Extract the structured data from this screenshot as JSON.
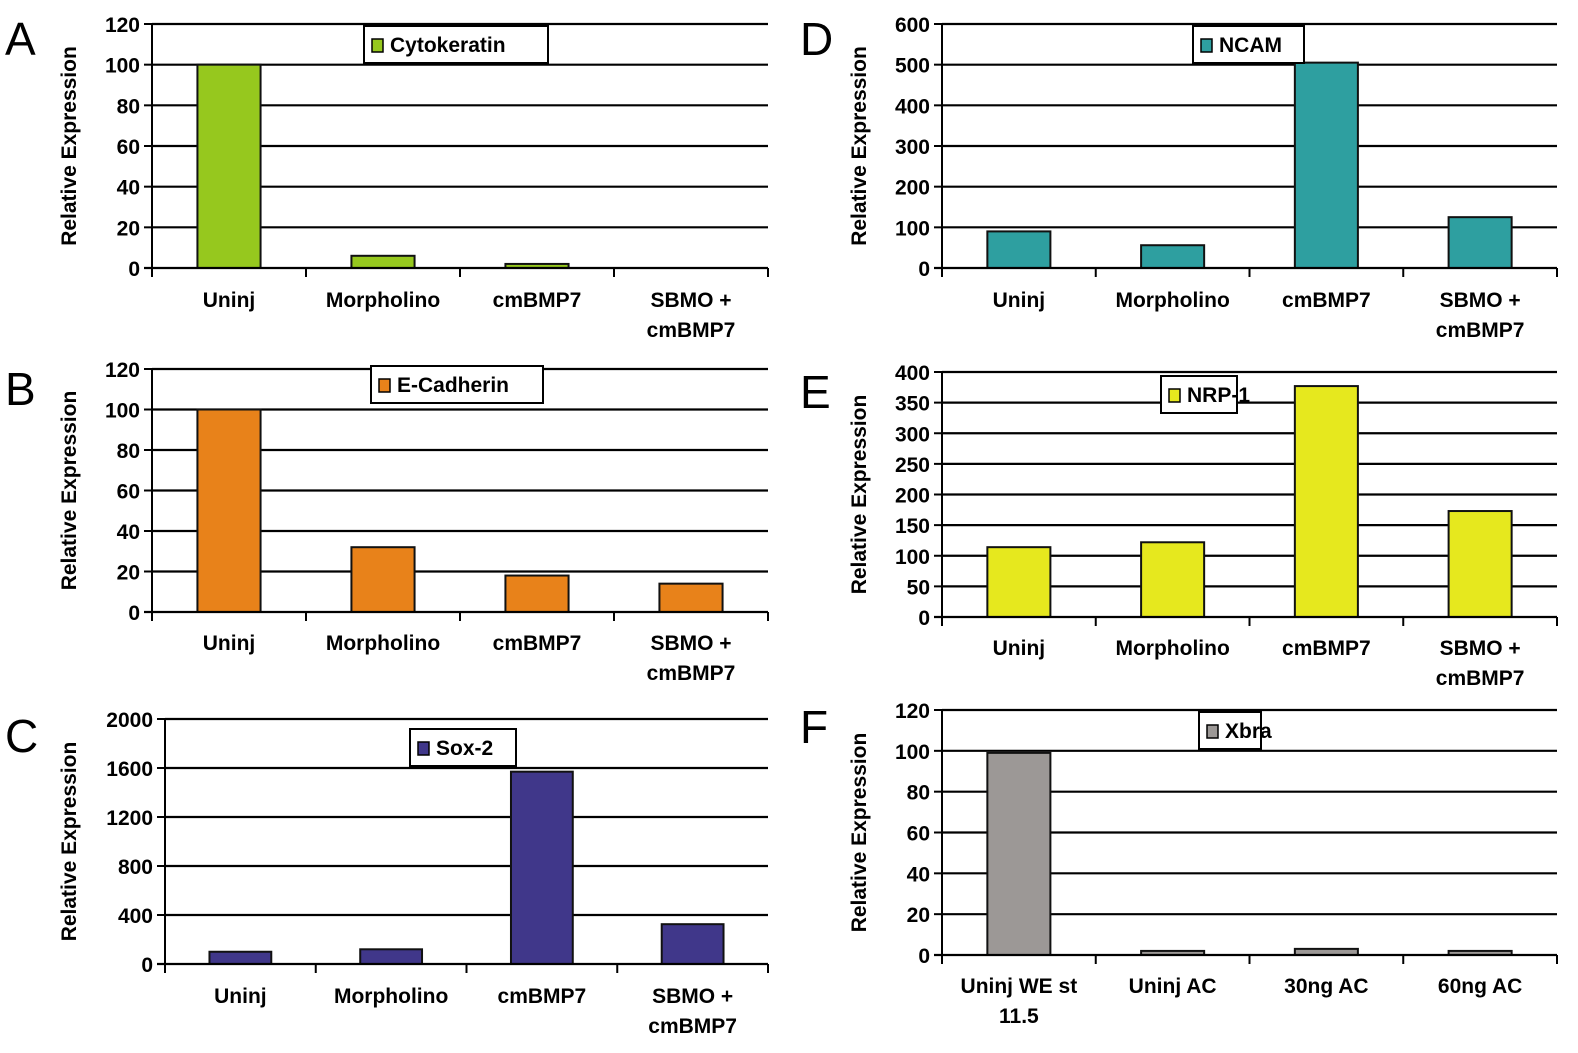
{
  "chart_data": [
    {
      "panel": "A",
      "type": "bar",
      "title": "",
      "legend": "Cytokeratin",
      "legend_position": "top-center",
      "color": "#96c81e",
      "xlabel": "",
      "ylabel": "Relative Expression",
      "ylim": [
        0,
        120
      ],
      "yticks": [
        0,
        20,
        40,
        60,
        80,
        100,
        120
      ],
      "grid": true,
      "categories": [
        [
          "Uninj"
        ],
        [
          "Morpholino"
        ],
        [
          "cmBMP7"
        ],
        [
          "SBMO +",
          "cmBMP7"
        ]
      ],
      "values": [
        100,
        6,
        2,
        0
      ]
    },
    {
      "panel": "B",
      "type": "bar",
      "title": "",
      "legend": "E-Cadherin",
      "legend_position": "top-center",
      "color": "#e8821a",
      "xlabel": "",
      "ylabel": "Relative Expression",
      "ylim": [
        0,
        120
      ],
      "yticks": [
        0,
        20,
        40,
        60,
        80,
        100,
        120
      ],
      "grid": true,
      "categories": [
        [
          "Uninj"
        ],
        [
          "Morpholino"
        ],
        [
          "cmBMP7"
        ],
        [
          "SBMO +",
          "cmBMP7"
        ]
      ],
      "values": [
        100,
        32,
        18,
        14
      ]
    },
    {
      "panel": "C",
      "type": "bar",
      "title": "",
      "legend": "Sox-2",
      "legend_position": "top-center",
      "color": "#40378a",
      "xlabel": "",
      "ylabel": "Relative Expression",
      "ylim": [
        0,
        2000
      ],
      "yticks": [
        0,
        400,
        800,
        1200,
        1600,
        2000
      ],
      "grid": true,
      "categories": [
        [
          "Uninj"
        ],
        [
          "Morpholino"
        ],
        [
          "cmBMP7"
        ],
        [
          "SBMO +",
          "cmBMP7"
        ]
      ],
      "values": [
        100,
        120,
        1570,
        325
      ]
    },
    {
      "panel": "D",
      "type": "bar",
      "title": "",
      "legend": "NCAM",
      "legend_position": "top-center",
      "color": "#2e9fa0",
      "xlabel": "",
      "ylabel": "Relative Expression",
      "ylim": [
        0,
        600
      ],
      "yticks": [
        0,
        100,
        200,
        300,
        400,
        500,
        600
      ],
      "grid": true,
      "categories": [
        [
          "Uninj"
        ],
        [
          "Morpholino"
        ],
        [
          "cmBMP7"
        ],
        [
          "SBMO +",
          "cmBMP7"
        ]
      ],
      "values": [
        90,
        56,
        505,
        125
      ]
    },
    {
      "panel": "E",
      "type": "bar",
      "title": "",
      "legend": "NRP-1",
      "legend_position": "top-center",
      "color": "#e6e81e",
      "xlabel": "",
      "ylabel": "Relative Expression",
      "ylim": [
        0,
        400
      ],
      "yticks": [
        0,
        50,
        100,
        150,
        200,
        250,
        300,
        350,
        400
      ],
      "grid": true,
      "categories": [
        [
          "Uninj"
        ],
        [
          "Morpholino"
        ],
        [
          "cmBMP7"
        ],
        [
          "SBMO +",
          "cmBMP7"
        ]
      ],
      "values": [
        114,
        122,
        377,
        173
      ]
    },
    {
      "panel": "F",
      "type": "bar",
      "title": "",
      "legend": "Xbra",
      "legend_position": "top-center",
      "color": "#9c9896",
      "xlabel": "",
      "ylabel": "Relative Expression",
      "ylim": [
        0,
        120
      ],
      "yticks": [
        0,
        20,
        40,
        60,
        80,
        100,
        120
      ],
      "grid": true,
      "categories": [
        [
          "Uninj WE st",
          "11.5"
        ],
        [
          "Uninj AC"
        ],
        [
          "30ng AC"
        ],
        [
          "60ng AC"
        ]
      ],
      "values": [
        99,
        2,
        3,
        2
      ]
    }
  ]
}
